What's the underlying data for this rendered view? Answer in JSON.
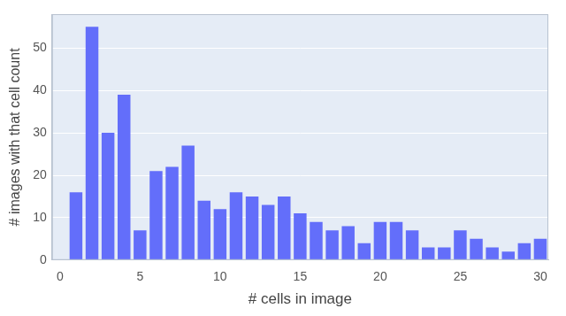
{
  "chart_data": {
    "type": "bar",
    "x_label": "# cells in image",
    "y_label": "# images with that cell count",
    "x": [
      1,
      2,
      3,
      4,
      5,
      6,
      7,
      8,
      9,
      10,
      11,
      12,
      13,
      14,
      15,
      16,
      17,
      18,
      19,
      20,
      21,
      22,
      23,
      24,
      25,
      26,
      27,
      28,
      29,
      30
    ],
    "values": [
      16,
      55,
      30,
      39,
      7,
      21,
      22,
      27,
      14,
      12,
      16,
      15,
      13,
      15,
      11,
      9,
      7,
      8,
      4,
      9,
      9,
      7,
      3,
      3,
      7,
      5,
      3,
      2,
      4,
      5
    ],
    "color": "#636efa",
    "xlim": [
      -0.5,
      30.5
    ],
    "xticks": [
      0,
      5,
      10,
      15,
      20,
      25,
      30
    ],
    "ylim": [
      0,
      58
    ],
    "yticks": [
      0,
      10,
      20,
      30,
      40,
      50
    ],
    "grid": true
  }
}
